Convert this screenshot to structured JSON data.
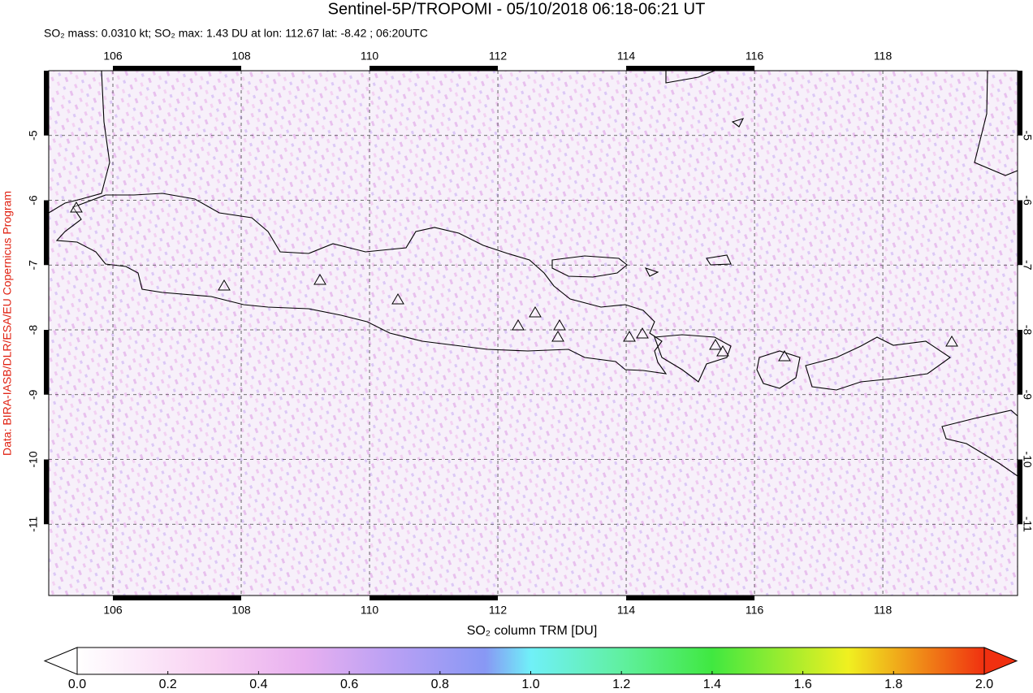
{
  "header": {
    "title": "Sentinel-5P/TROPOMI - 05/10/2018 06:18-06:21 UT",
    "subtitle": "SO₂ mass: 0.0310 kt; SO₂ max: 1.43 DU at lon: 112.67 lat: -8.42 ; 06:20UTC"
  },
  "map": {
    "lon_range": [
      105,
      120.1
    ],
    "lat_range": [
      -4,
      -12.1
    ],
    "lon_ticks": [
      106,
      108,
      110,
      112,
      114,
      116,
      118
    ],
    "lat_ticks": [
      -5,
      -6,
      -7,
      -8,
      -9,
      -10,
      -11
    ]
  },
  "colorbar": {
    "label": "SO₂ column TRM [DU]",
    "range": [
      0,
      2
    ],
    "ticks": [
      {
        "value": 0,
        "label": "0.0"
      },
      {
        "value": 0.2,
        "label": "0.2"
      },
      {
        "value": 0.4,
        "label": "0.4"
      },
      {
        "value": 0.6,
        "label": "0.6"
      },
      {
        "value": 0.8,
        "label": "0.8"
      },
      {
        "value": 1,
        "label": "1.0"
      },
      {
        "value": 1.2,
        "label": "1.2"
      },
      {
        "value": 1.4,
        "label": "1.4"
      },
      {
        "value": 1.6,
        "label": "1.6"
      },
      {
        "value": 1.8,
        "label": "1.8"
      },
      {
        "value": 2,
        "label": "2.0"
      }
    ]
  },
  "credit": "Data: BIRA-IASB/DLR/ESA/EU Copernicus Program"
}
